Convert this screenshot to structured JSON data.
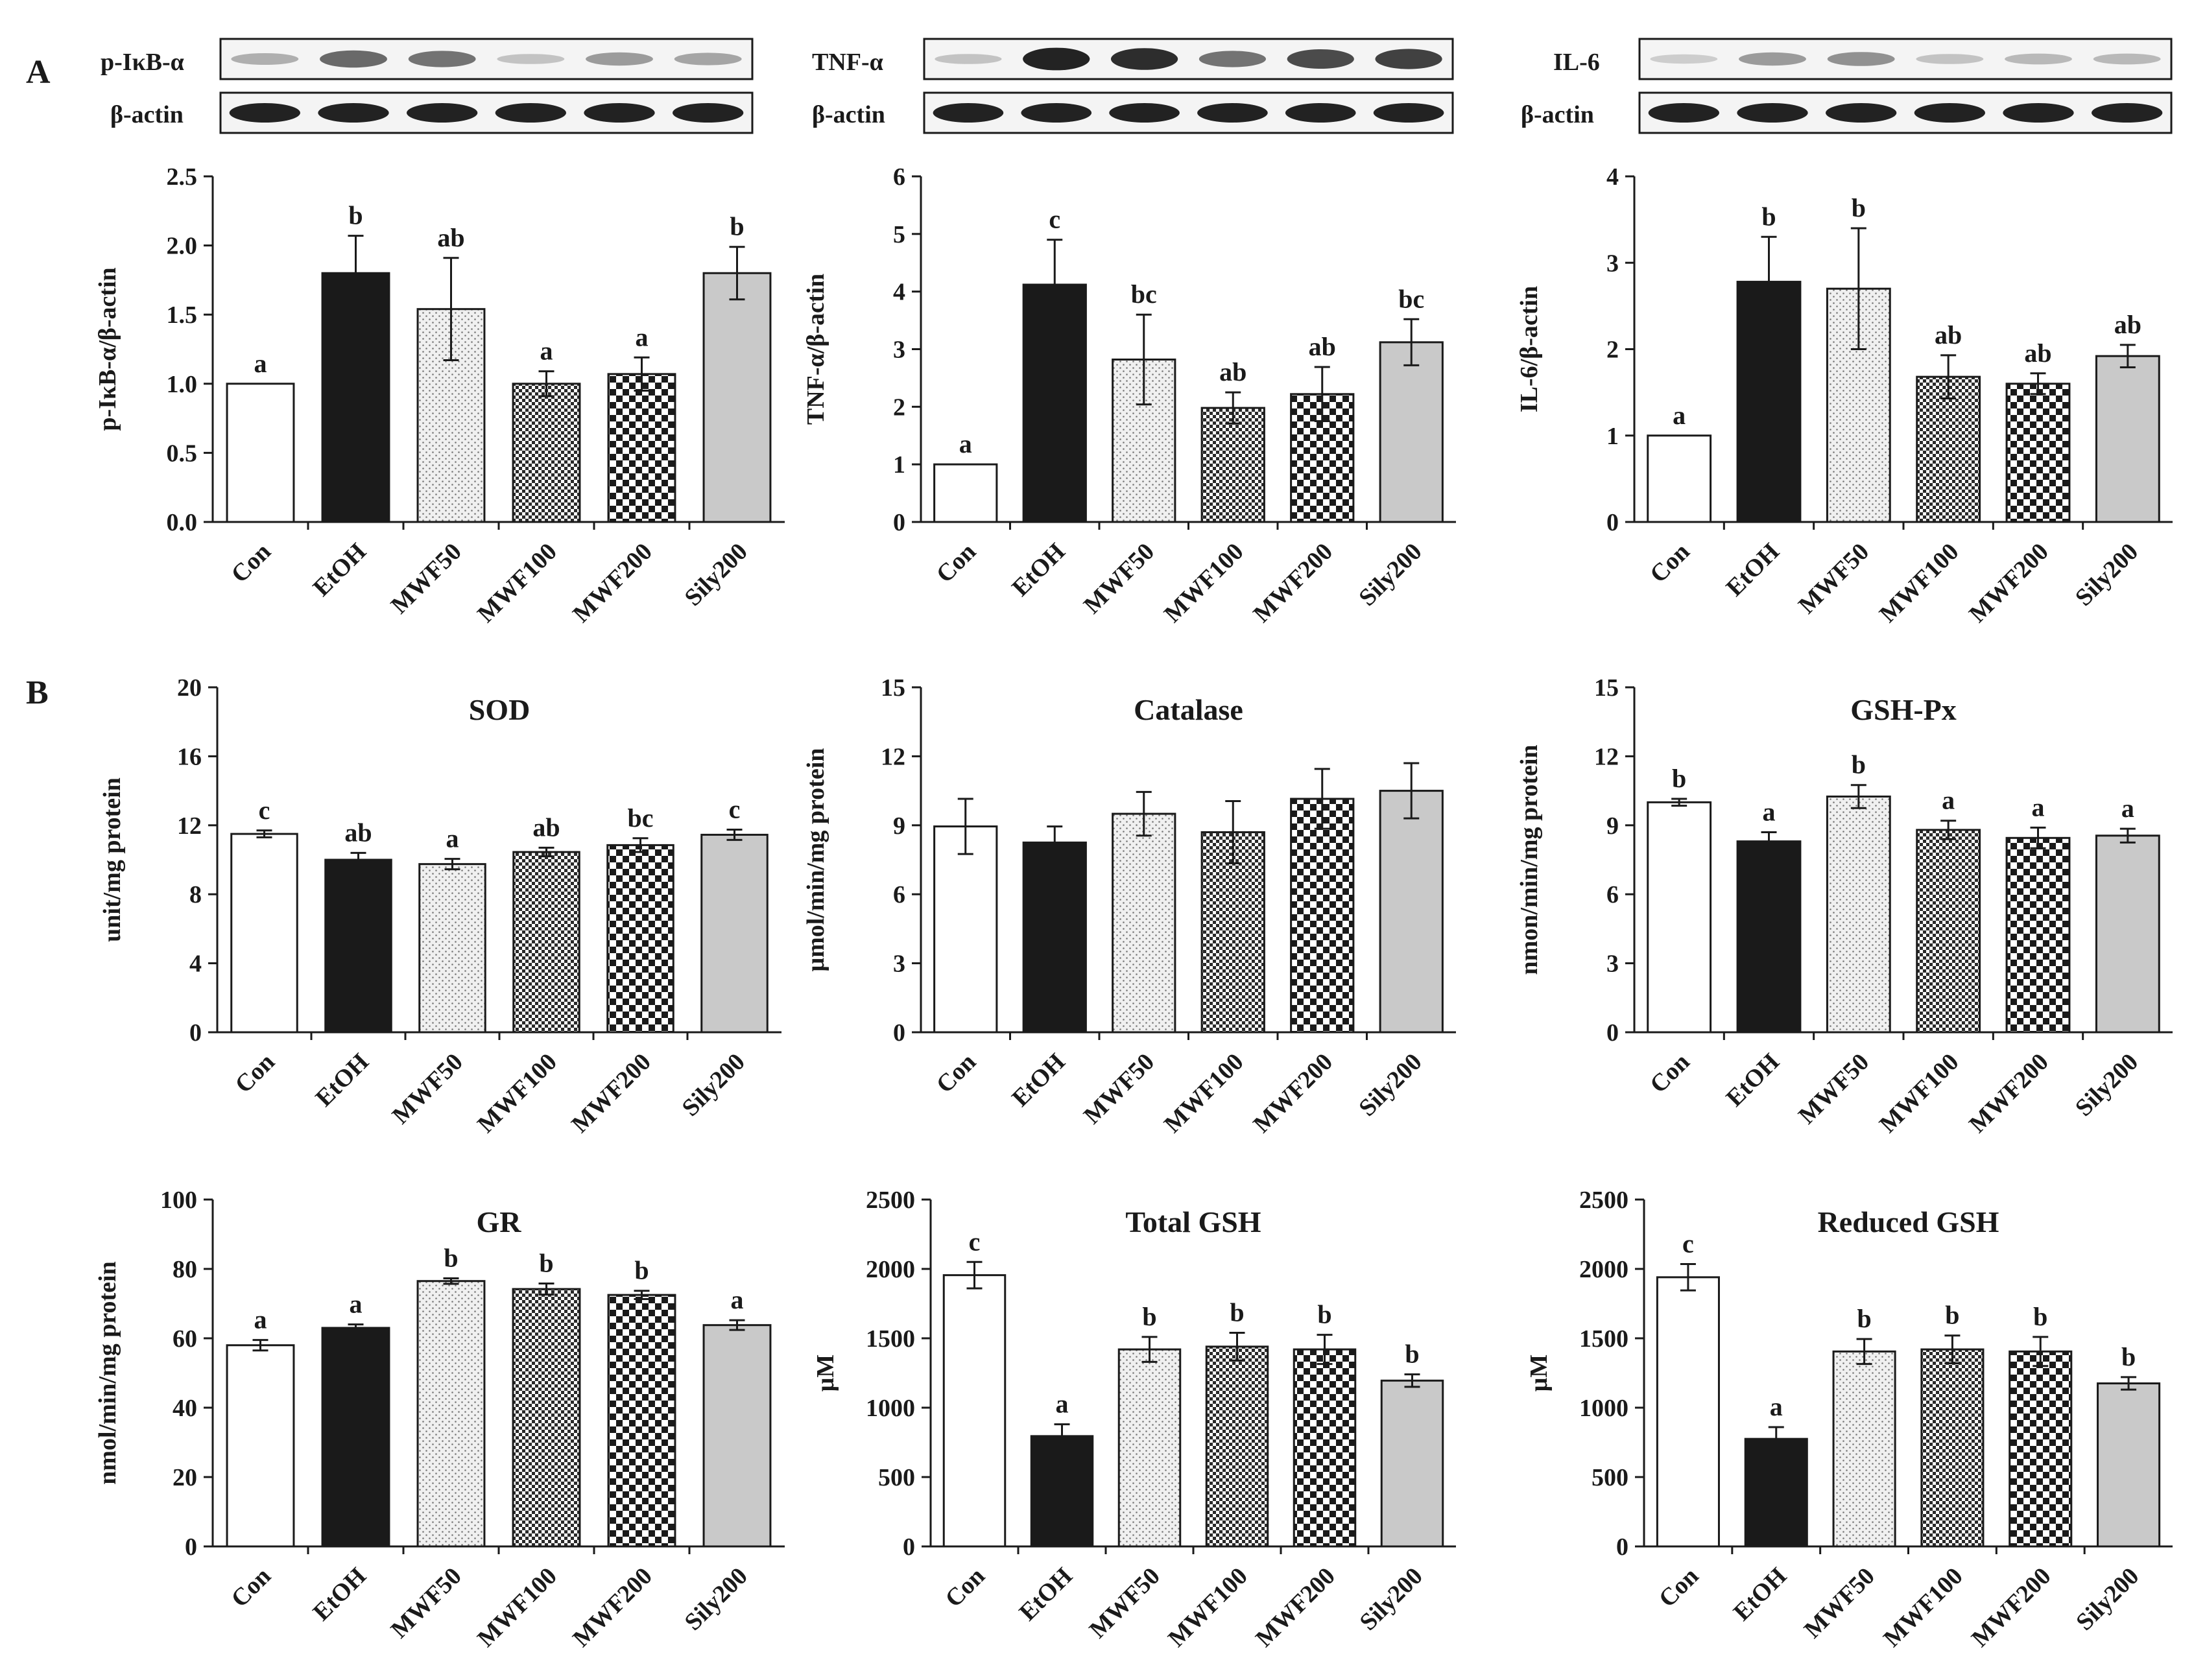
{
  "panel_labels": [
    "A",
    "B"
  ],
  "colors": {
    "ink": "#1a1a1a",
    "sily": "#c9c9c9",
    "etoh": "#1a1a1a",
    "con": "#ffffff"
  },
  "categories": [
    "Con",
    "EtOH",
    "MWF50",
    "MWF100",
    "MWF200",
    "Sily200"
  ],
  "fills": [
    "white",
    "black",
    "dots",
    "fine-check",
    "coarse-check",
    "gray"
  ],
  "blots": [
    {
      "target": "p-IκB-α",
      "ref": "β-actin",
      "intensity": [
        0.25,
        0.6,
        0.55,
        0.15,
        0.35,
        0.3
      ]
    },
    {
      "target": "TNF-α",
      "ref": "β-actin",
      "intensity": [
        0.15,
        0.95,
        0.9,
        0.55,
        0.75,
        0.8
      ]
    },
    {
      "target": "IL-6",
      "ref": "β-actin",
      "intensity": [
        0.1,
        0.35,
        0.4,
        0.15,
        0.2,
        0.2
      ]
    }
  ],
  "chart_data": [
    {
      "type": "bar",
      "title": "",
      "ylabel": "p-IκB-α/β-actin",
      "ylim": [
        0,
        2.5
      ],
      "ticks": [
        "0.0",
        "0.5",
        "1.0",
        "1.5",
        "2.0",
        "2.5"
      ],
      "categories": [
        "Con",
        "EtOH",
        "MWF50",
        "MWF100",
        "MWF200",
        "Sily200"
      ],
      "values": [
        1.0,
        1.8,
        1.54,
        1.0,
        1.07,
        1.8
      ],
      "errors": [
        0,
        0.27,
        0.37,
        0.09,
        0.12,
        0.19
      ],
      "letters": [
        "a",
        "b",
        "ab",
        "a",
        "a",
        "b"
      ]
    },
    {
      "type": "bar",
      "title": "",
      "ylabel": "TNF-α/β-actin",
      "ylim": [
        0,
        6
      ],
      "ticks": [
        "0",
        "1",
        "2",
        "3",
        "4",
        "5",
        "6"
      ],
      "categories": [
        "Con",
        "EtOH",
        "MWF50",
        "MWF100",
        "MWF200",
        "Sily200"
      ],
      "values": [
        1.0,
        4.12,
        2.82,
        1.98,
        2.22,
        3.12
      ],
      "errors": [
        0,
        0.78,
        0.78,
        0.27,
        0.47,
        0.4
      ],
      "letters": [
        "a",
        "c",
        "bc",
        "ab",
        "ab",
        "bc"
      ]
    },
    {
      "type": "bar",
      "title": "",
      "ylabel": "IL-6/β-actin",
      "ylim": [
        0,
        4
      ],
      "ticks": [
        "0",
        "1",
        "2",
        "3",
        "4"
      ],
      "categories": [
        "Con",
        "EtOH",
        "MWF50",
        "MWF100",
        "MWF200",
        "Sily200"
      ],
      "values": [
        1.0,
        2.78,
        2.7,
        1.68,
        1.6,
        1.92
      ],
      "errors": [
        0,
        0.52,
        0.7,
        0.25,
        0.12,
        0.13
      ],
      "letters": [
        "a",
        "b",
        "b",
        "ab",
        "ab",
        "ab"
      ]
    },
    {
      "type": "bar",
      "title": "SOD",
      "ylabel": "unit/mg protein",
      "ylim": [
        0,
        20
      ],
      "ticks": [
        "0",
        "4",
        "8",
        "12",
        "16",
        "20"
      ],
      "categories": [
        "Con",
        "EtOH",
        "MWF50",
        "MWF100",
        "MWF200",
        "Sily200"
      ],
      "values": [
        11.5,
        10.0,
        9.75,
        10.45,
        10.85,
        11.45
      ],
      "errors": [
        0.2,
        0.4,
        0.3,
        0.25,
        0.4,
        0.3
      ],
      "letters": [
        "c",
        "ab",
        "a",
        "ab",
        "bc",
        "c"
      ]
    },
    {
      "type": "bar",
      "title": "Catalase",
      "ylabel": "μmol/min/mg protein",
      "ylim": [
        0,
        15
      ],
      "ticks": [
        "0",
        "3",
        "6",
        "9",
        "12",
        "15"
      ],
      "categories": [
        "Con",
        "EtOH",
        "MWF50",
        "MWF100",
        "MWF200",
        "Sily200"
      ],
      "values": [
        8.95,
        8.25,
        9.5,
        8.7,
        10.15,
        10.5
      ],
      "errors": [
        1.2,
        0.7,
        0.95,
        1.35,
        1.3,
        1.2
      ],
      "letters": [
        "",
        "",
        "",
        "",
        "",
        ""
      ]
    },
    {
      "type": "bar",
      "title": "GSH-Px",
      "ylabel": "nmon/min/mg protein",
      "ylim": [
        0,
        15
      ],
      "ticks": [
        "0",
        "3",
        "6",
        "9",
        "12",
        "15"
      ],
      "categories": [
        "Con",
        "EtOH",
        "MWF50",
        "MWF100",
        "MWF200",
        "Sily200"
      ],
      "values": [
        10.0,
        8.3,
        10.25,
        8.8,
        8.45,
        8.55
      ],
      "errors": [
        0.15,
        0.4,
        0.5,
        0.4,
        0.45,
        0.3
      ],
      "letters": [
        "b",
        "a",
        "b",
        "a",
        "a",
        "a"
      ]
    },
    {
      "type": "bar",
      "title": "GR",
      "ylabel": "nmol/min/mg protein",
      "ylim": [
        0,
        100
      ],
      "ticks": [
        "0",
        "20",
        "40",
        "60",
        "80",
        "100"
      ],
      "categories": [
        "Con",
        "EtOH",
        "MWF50",
        "MWF100",
        "MWF200",
        "Sily200"
      ],
      "values": [
        58.0,
        63.0,
        76.5,
        74.2,
        72.5,
        63.8
      ],
      "errors": [
        1.5,
        1.0,
        0.8,
        1.6,
        1.2,
        1.4
      ],
      "letters": [
        "a",
        "a",
        "b",
        "b",
        "b",
        "a"
      ]
    },
    {
      "type": "bar",
      "title": "Total GSH",
      "ylabel": "μM",
      "ylim": [
        0,
        2500
      ],
      "ticks": [
        "0",
        "500",
        "1000",
        "1500",
        "2000",
        "2500"
      ],
      "categories": [
        "Con",
        "EtOH",
        "MWF50",
        "MWF100",
        "MWF200",
        "Sily200"
      ],
      "values": [
        1955,
        795,
        1420,
        1440,
        1420,
        1195
      ],
      "errors": [
        95,
        85,
        90,
        100,
        105,
        45
      ],
      "letters": [
        "c",
        "a",
        "b",
        "b",
        "b",
        "b"
      ]
    },
    {
      "type": "bar",
      "title": "Reduced GSH",
      "ylabel": "μM",
      "ylim": [
        0,
        2500
      ],
      "ticks": [
        "0",
        "500",
        "1000",
        "1500",
        "2000",
        "2500"
      ],
      "categories": [
        "Con",
        "EtOH",
        "MWF50",
        "MWF100",
        "MWF200",
        "Sily200"
      ],
      "values": [
        1940,
        775,
        1405,
        1420,
        1405,
        1175
      ],
      "errors": [
        95,
        85,
        90,
        100,
        105,
        45
      ],
      "letters": [
        "c",
        "a",
        "b",
        "b",
        "b",
        "b"
      ]
    }
  ]
}
